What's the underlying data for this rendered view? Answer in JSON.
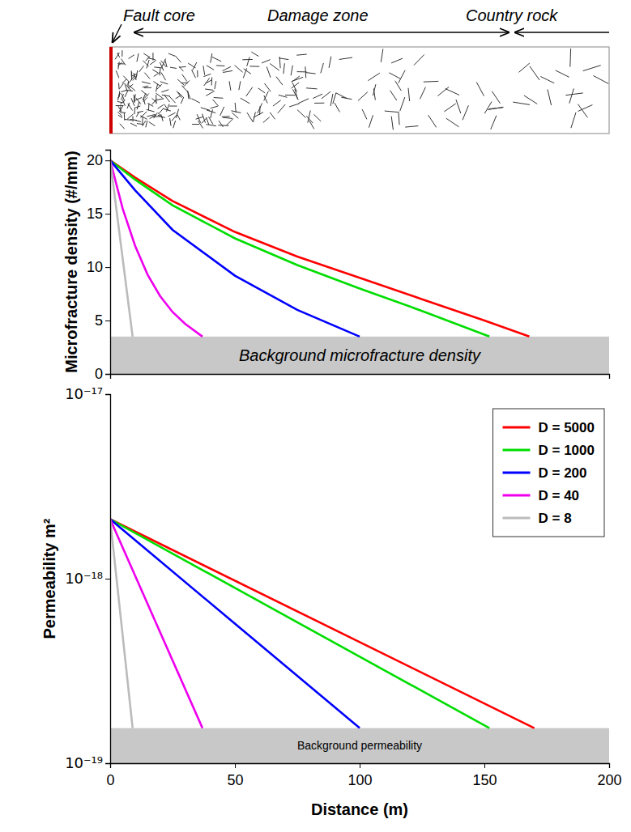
{
  "diagram": {
    "fault_core": "Fault core",
    "damage_zone": "Damage zone",
    "country_rock": "Country rock"
  },
  "chart_data": [
    {
      "type": "line",
      "ylabel": "Microfracture density (#/mm)",
      "xlim": [
        0,
        200
      ],
      "ylim": [
        0,
        21
      ],
      "yticks": [
        0,
        5,
        10,
        15,
        20
      ],
      "tick_labels": "y",
      "background": {
        "label": "Background microfracture density",
        "range": [
          0,
          3.5
        ]
      },
      "series": [
        {
          "color": "#ff0000",
          "x": [
            0,
            10,
            25,
            50,
            75,
            100,
            125,
            150,
            168
          ],
          "values": [
            20,
            18.4,
            16.2,
            13.3,
            11,
            9,
            7,
            5,
            3.5
          ]
        },
        {
          "color": "#00dd00",
          "x": [
            0,
            10,
            25,
            50,
            75,
            100,
            125,
            152
          ],
          "values": [
            20,
            18.2,
            15.8,
            12.7,
            10.2,
            8,
            5.9,
            3.5
          ]
        },
        {
          "color": "#0000ff",
          "x": [
            0,
            10,
            25,
            50,
            75,
            100
          ],
          "values": [
            20,
            17.2,
            13.5,
            9.2,
            6,
            3.5
          ]
        },
        {
          "color": "#ee00ee",
          "x": [
            0,
            5,
            10,
            15,
            20,
            25,
            30,
            37
          ],
          "values": [
            20,
            15.5,
            12,
            9.3,
            7.3,
            5.8,
            4.7,
            3.5
          ]
        },
        {
          "color": "#bbbbbb",
          "x": [
            0,
            9
          ],
          "values": [
            20,
            3.5
          ]
        }
      ]
    },
    {
      "type": "line",
      "xlabel": "Distance (m)",
      "ylabel": "Permeability m²",
      "log": "y",
      "xlim": [
        0,
        200
      ],
      "ylim": [
        1e-19,
        1e-17
      ],
      "xticks": [
        0,
        50,
        100,
        150,
        200
      ],
      "yticks": [
        {
          "value": 1e-19,
          "label": "10⁻¹⁹"
        },
        {
          "value": 1e-18,
          "label": "10⁻¹⁸"
        },
        {
          "value": 1e-17,
          "label": "10⁻¹⁷"
        }
      ],
      "legend": "upper right",
      "background": {
        "label": "Background permeability",
        "range": [
          1e-19,
          1.55e-19
        ]
      },
      "series": [
        {
          "name": "D = 5000",
          "color": "#ff0000",
          "x": [
            0,
            170
          ],
          "values": [
            2.1e-18,
            1.55e-19
          ]
        },
        {
          "name": "D = 1000",
          "color": "#00dd00",
          "x": [
            0,
            152
          ],
          "values": [
            2.1e-18,
            1.55e-19
          ]
        },
        {
          "name": "D = 200",
          "color": "#0000ff",
          "x": [
            0,
            100
          ],
          "values": [
            2.1e-18,
            1.55e-19
          ]
        },
        {
          "name": "D = 40",
          "color": "#ee00ee",
          "x": [
            0,
            37
          ],
          "values": [
            2.1e-18,
            1.55e-19
          ]
        },
        {
          "name": "D = 8",
          "color": "#bbbbbb",
          "x": [
            0,
            9
          ],
          "values": [
            2.1e-18,
            1.55e-19
          ]
        }
      ]
    }
  ]
}
